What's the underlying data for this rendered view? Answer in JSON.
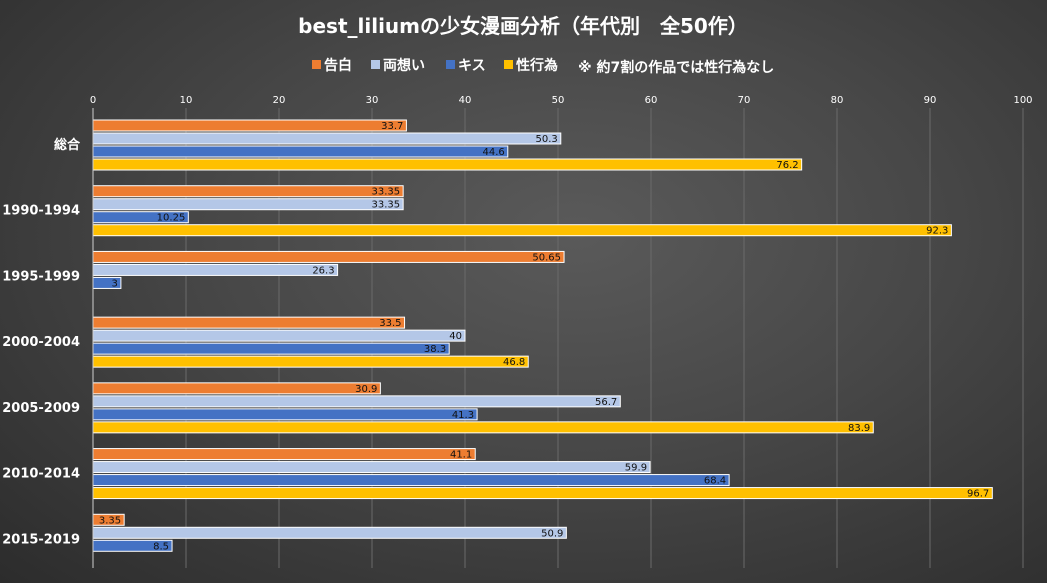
{
  "chart_data": {
    "type": "bar",
    "orientation": "horizontal",
    "title": "best_liliumの少女漫画分析（年代別　全50作）",
    "note": "※ 約7割の作品では性行為なし",
    "xlim": [
      0,
      100
    ],
    "xticks": [
      0,
      10,
      20,
      30,
      40,
      50,
      60,
      70,
      80,
      90,
      100
    ],
    "categories": [
      "総合",
      "1990-1994",
      "1995-1999",
      "2000-2004",
      "2005-2009",
      "2010-2014",
      "2015-2019"
    ],
    "series": [
      {
        "name": "告白",
        "color": "#ed7d31",
        "values": [
          33.7,
          33.35,
          50.65,
          33.5,
          30.9,
          41.1,
          3.35
        ]
      },
      {
        "name": "両想い",
        "color": "#b4c7e7",
        "values": [
          50.3,
          33.35,
          26.3,
          40,
          56.7,
          59.9,
          50.9
        ]
      },
      {
        "name": "キス",
        "color": "#4472c4",
        "values": [
          44.6,
          10.25,
          3,
          38.3,
          41.3,
          68.4,
          8.5
        ]
      },
      {
        "name": "性行為",
        "color": "#ffc000",
        "values": [
          76.2,
          92.3,
          null,
          46.8,
          83.9,
          96.7,
          null
        ]
      }
    ],
    "grid": true,
    "legend_position": "top"
  }
}
